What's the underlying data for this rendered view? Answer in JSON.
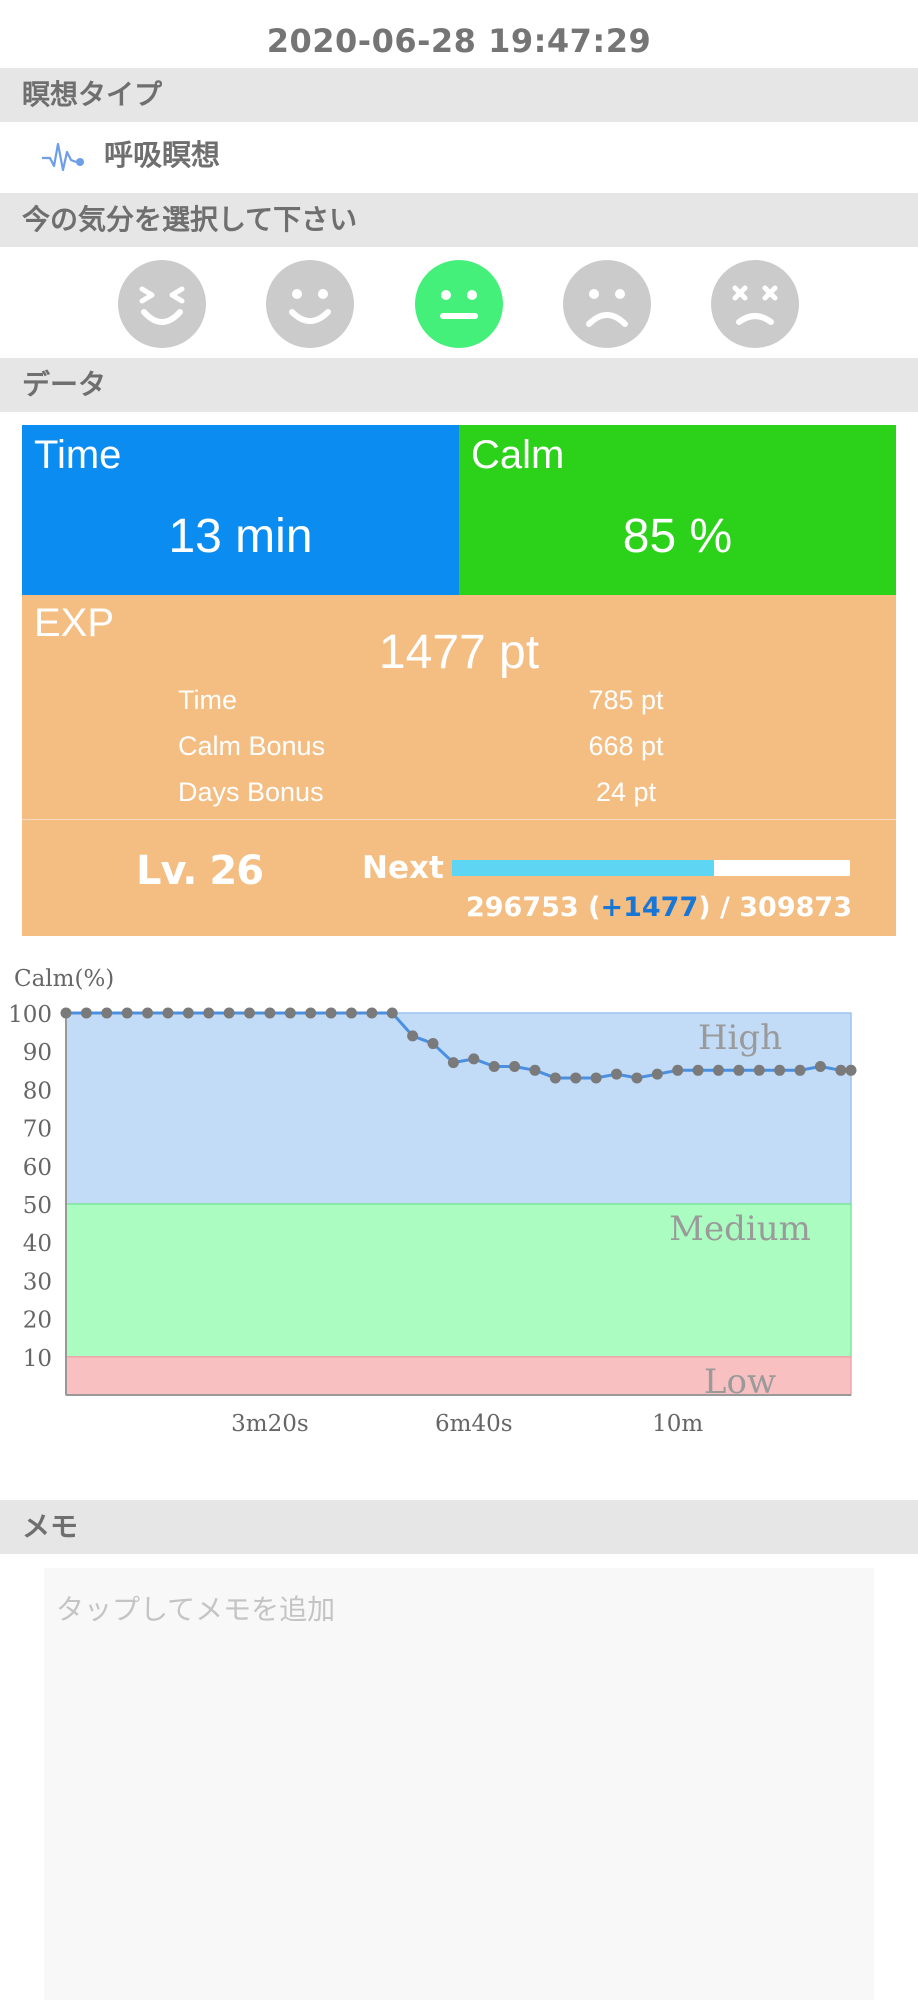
{
  "timestamp": "2020-06-28 19:47:29",
  "sections": {
    "meditation_type": "瞑想タイプ",
    "mood": "今の気分を選択して下さい",
    "data": "データ",
    "memo": "メモ"
  },
  "meditation_type": {
    "label": "呼吸瞑想",
    "icon": "pulse-icon"
  },
  "moods": [
    {
      "name": "grinning-face-icon",
      "selected": false
    },
    {
      "name": "smiling-face-icon",
      "selected": false
    },
    {
      "name": "neutral-face-icon",
      "selected": true
    },
    {
      "name": "sad-face-icon",
      "selected": false
    },
    {
      "name": "dizzy-face-icon",
      "selected": false
    }
  ],
  "stats": {
    "time_title": "Time",
    "time_value": "13 min",
    "calm_title": "Calm",
    "calm_value": "85 %",
    "exp_title": "EXP",
    "exp_total": "1477 pt",
    "exp_rows": [
      {
        "label": "Time",
        "value": "785 pt"
      },
      {
        "label": "Calm Bonus",
        "value": "668 pt"
      },
      {
        "label": "Days Bonus",
        "value": "24 pt"
      }
    ],
    "level": "Lv. 26",
    "next_label": "Next",
    "progress_current": "296753",
    "progress_gain": "+1477",
    "progress_target": "309873",
    "progress_fraction": 0.6575
  },
  "colors": {
    "time": "#0a8cf0",
    "calm": "#2cd11a",
    "exp": "#f4bd82",
    "progress": "#5dd5f3",
    "selected_mood": "#45f07a"
  },
  "chart_data": {
    "type": "line",
    "ylabel": "Calm(%)",
    "ylim": [
      0,
      100
    ],
    "yticks": [
      10,
      20,
      30,
      40,
      50,
      60,
      70,
      80,
      90,
      100
    ],
    "xlim": [
      0,
      770
    ],
    "xticks": [
      {
        "value": 200,
        "label": "3m20s"
      },
      {
        "value": 400,
        "label": "6m40s"
      },
      {
        "value": 600,
        "label": "10m"
      }
    ],
    "zones": [
      {
        "name": "High",
        "from": 50,
        "to": 100,
        "color": "#c2dcf8"
      },
      {
        "name": "Medium",
        "from": 10,
        "to": 50,
        "color": "#aafcc1"
      },
      {
        "name": "Low",
        "from": 0,
        "to": 10,
        "color": "#f8c0c1"
      }
    ],
    "series": [
      {
        "x": [
          0,
          20,
          40,
          60,
          80,
          100,
          120,
          140,
          160,
          180,
          200,
          220,
          240,
          260,
          280,
          300,
          320,
          340,
          360,
          380,
          400,
          420,
          440,
          460,
          480,
          500,
          520,
          540,
          560,
          580,
          600,
          620,
          640,
          660,
          680,
          700,
          720,
          740,
          760,
          770
        ],
        "values": [
          100,
          100,
          100,
          100,
          100,
          100,
          100,
          100,
          100,
          100,
          100,
          100,
          100,
          100,
          100,
          100,
          100,
          94,
          92,
          87,
          88,
          86,
          86,
          85,
          83,
          83,
          83,
          84,
          83,
          84,
          85,
          85,
          85,
          85,
          85,
          85,
          85,
          86,
          85,
          85
        ]
      }
    ],
    "grid": false
  },
  "memo": {
    "placeholder": "タップしてメモを追加"
  }
}
